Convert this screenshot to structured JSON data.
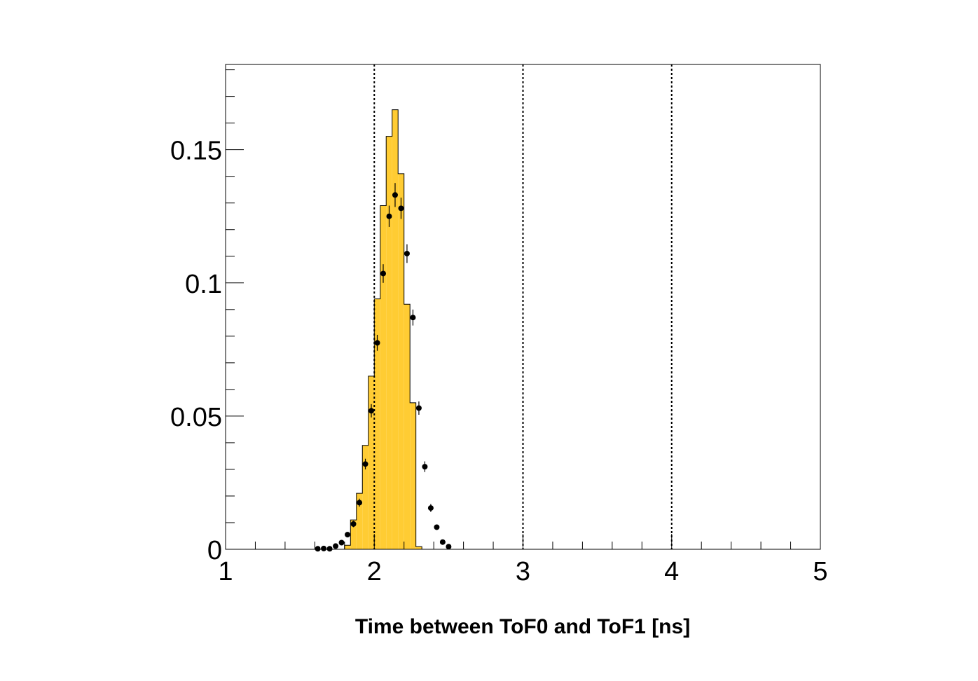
{
  "chart_data": {
    "type": "histogram",
    "title": "",
    "xlabel": "Time between ToF0 and ToF1 [ns]",
    "ylabel": "",
    "xlim": [
      1,
      5
    ],
    "ylim": [
      0,
      0.182
    ],
    "x_ticks": [
      1,
      2,
      3,
      4,
      5
    ],
    "x_tick_labels": [
      "1",
      "2",
      "3",
      "4",
      "5"
    ],
    "y_ticks": [
      0,
      0.05,
      0.1,
      0.15
    ],
    "y_tick_labels": [
      "0",
      "0.05",
      "0.1",
      "0.15"
    ],
    "vertical_lines": [
      2,
      3,
      4
    ],
    "fill_color": "#ffcc33",
    "series": [
      {
        "kind": "filled-histogram",
        "bin_edges": [
          1.8,
          1.84,
          1.88,
          1.92,
          1.96,
          2.0,
          2.04,
          2.08,
          2.12,
          2.16,
          2.2,
          2.24,
          2.28,
          2.32
        ],
        "values": [
          0.0015,
          0.011,
          0.021,
          0.039,
          0.065,
          0.094,
          0.129,
          0.155,
          0.165,
          0.141,
          0.092,
          0.055,
          0.001
        ]
      },
      {
        "kind": "points-with-errors",
        "x": [
          1.62,
          1.66,
          1.7,
          1.74,
          1.78,
          1.82,
          1.86,
          1.9,
          1.94,
          1.98,
          2.02,
          2.06,
          2.1,
          2.14,
          2.18,
          2.22,
          2.26,
          2.3,
          2.34,
          2.38,
          2.42,
          2.46,
          2.5
        ],
        "y": [
          0.0002,
          0.0003,
          0.0002,
          0.0012,
          0.0025,
          0.0055,
          0.0095,
          0.0175,
          0.032,
          0.052,
          0.0775,
          0.1035,
          0.125,
          0.133,
          0.128,
          0.111,
          0.087,
          0.053,
          0.031,
          0.0155,
          0.0083,
          0.0027,
          0.001
        ],
        "yerr": [
          0.0003,
          0.0003,
          0.0003,
          0.0005,
          0.0007,
          0.001,
          0.0012,
          0.0015,
          0.002,
          0.0025,
          0.003,
          0.0035,
          0.004,
          0.0045,
          0.004,
          0.0035,
          0.003,
          0.0025,
          0.002,
          0.0015,
          0.001,
          0.0007,
          0.0005
        ]
      }
    ]
  }
}
